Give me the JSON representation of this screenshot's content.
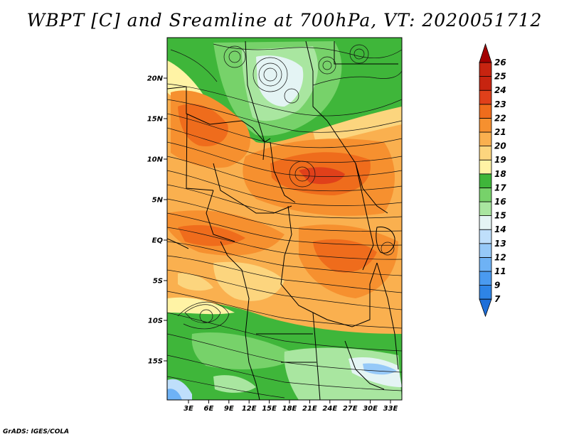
{
  "title": "WBPT [C] and Sreamline at 700hPa, VT: 2020051712",
  "footer": "GrADS: IGES/COLA",
  "map": {
    "lat_labels": [
      "20N",
      "15N",
      "10N",
      "5N",
      "EQ",
      "5S",
      "10S",
      "15S"
    ],
    "lon_labels": [
      "3E",
      "6E",
      "9E",
      "12E",
      "15E",
      "18E",
      "21E",
      "24E",
      "27E",
      "30E",
      "33E"
    ]
  },
  "colorbar": {
    "levels": [
      "7",
      "9",
      "11",
      "12",
      "13",
      "14",
      "15",
      "16",
      "17",
      "18",
      "19",
      "20",
      "21",
      "22",
      "23",
      "24",
      "25",
      "26"
    ],
    "colors": [
      "#1e6fd9",
      "#2e84e6",
      "#4a9af0",
      "#6eb2f5",
      "#96c9f8",
      "#bfdffb",
      "#e4f4f4",
      "#a9e6a0",
      "#77d26a",
      "#3fb63a",
      "#fff3a5",
      "#fcd57e",
      "#fab04f",
      "#f6902f",
      "#ef6c1c",
      "#e0401a",
      "#c72410",
      "#a30000"
    ]
  }
}
